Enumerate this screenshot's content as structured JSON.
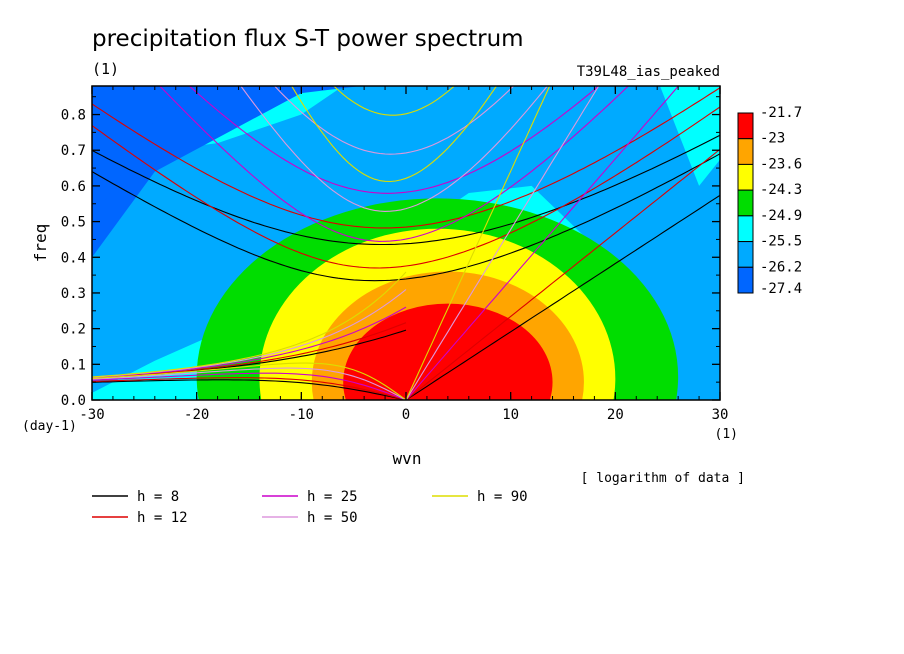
{
  "chart_data": {
    "type": "heatmap",
    "title": "precipitation flux S-T power spectrum",
    "title_units": "(1)",
    "run_label": "T39L48_ias_peaked",
    "xlabel": "wvn",
    "ylabel": "freq",
    "x_units": "(1)",
    "y_units": "(day-1)",
    "xlim": [
      -30,
      30
    ],
    "ylim": [
      0.0,
      0.88
    ],
    "x_ticks": [
      "-30",
      "-20",
      "-10",
      "0",
      "10",
      "20",
      "30"
    ],
    "x_tick_values": [
      -30,
      -20,
      -10,
      0,
      10,
      20,
      30
    ],
    "y_ticks": [
      "0.0",
      "0.1",
      "0.2",
      "0.3",
      "0.4",
      "0.5",
      "0.6",
      "0.7",
      "0.8"
    ],
    "y_tick_values": [
      0.0,
      0.1,
      0.2,
      0.3,
      0.4,
      0.5,
      0.6,
      0.7,
      0.8
    ],
    "colorbar": {
      "labels": [
        "-21.7",
        "-23",
        "-23.6",
        "-24.3",
        "-24.9",
        "-25.5",
        "-26.2",
        "-27.4"
      ],
      "colors": [
        "#ff0000",
        "#ffa500",
        "#ffff00",
        "#00dd00",
        "#00ffff",
        "#00aaff",
        "#0066ff"
      ]
    },
    "note": "[ logarithm of data ]",
    "dispersion_legend": [
      {
        "label": "h =  8",
        "color": "#000000"
      },
      {
        "label": "h = 12",
        "color": "#dd0000"
      },
      {
        "label": "h = 25",
        "color": "#cc00cc"
      },
      {
        "label": "h = 50",
        "color": "#dd99dd"
      },
      {
        "label": "h = 90",
        "color": "#dddd00"
      }
    ],
    "equivalent_depths_m": [
      8,
      12,
      25,
      50,
      90
    ],
    "spectrum_peak": {
      "wvn": 3,
      "freq": 0.05
    },
    "contour_levels": [
      -21.7,
      -23,
      -23.6,
      -24.3,
      -24.9,
      -25.5,
      -26.2,
      -27.4
    ]
  }
}
